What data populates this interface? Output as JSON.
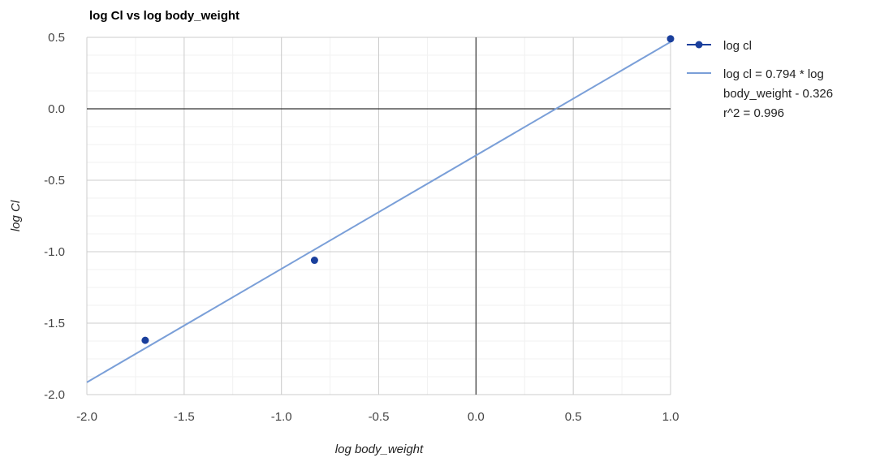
{
  "chart_data": {
    "type": "scatter",
    "title": "log Cl vs log body_weight",
    "xlabel": "log body_weight",
    "ylabel": "log Cl",
    "xlim": [
      -2.0,
      1.0
    ],
    "ylim": [
      -2.0,
      0.5
    ],
    "x_ticks": [
      "-2.0",
      "-1.5",
      "-1.0",
      "-0.5",
      "0.0",
      "0.5",
      "1.0"
    ],
    "y_ticks": [
      "0.5",
      "0.0",
      "-0.5",
      "-1.0",
      "-1.5",
      "-2.0"
    ],
    "grid": true,
    "legend_position": "right",
    "series": [
      {
        "name": "log cl",
        "type": "scatter",
        "color": "#1a3f9c",
        "points": [
          {
            "x": -1.7,
            "y": -1.62
          },
          {
            "x": -0.83,
            "y": -1.06
          },
          {
            "x": 1.0,
            "y": 0.49
          }
        ]
      }
    ],
    "trendline": {
      "slope": 0.794,
      "intercept": -0.326,
      "color": "#7a9fd8",
      "legend_lines": [
        "log cl = 0.794 * log",
        "body_weight - 0.326",
        "r^2 = 0.996"
      ]
    }
  }
}
